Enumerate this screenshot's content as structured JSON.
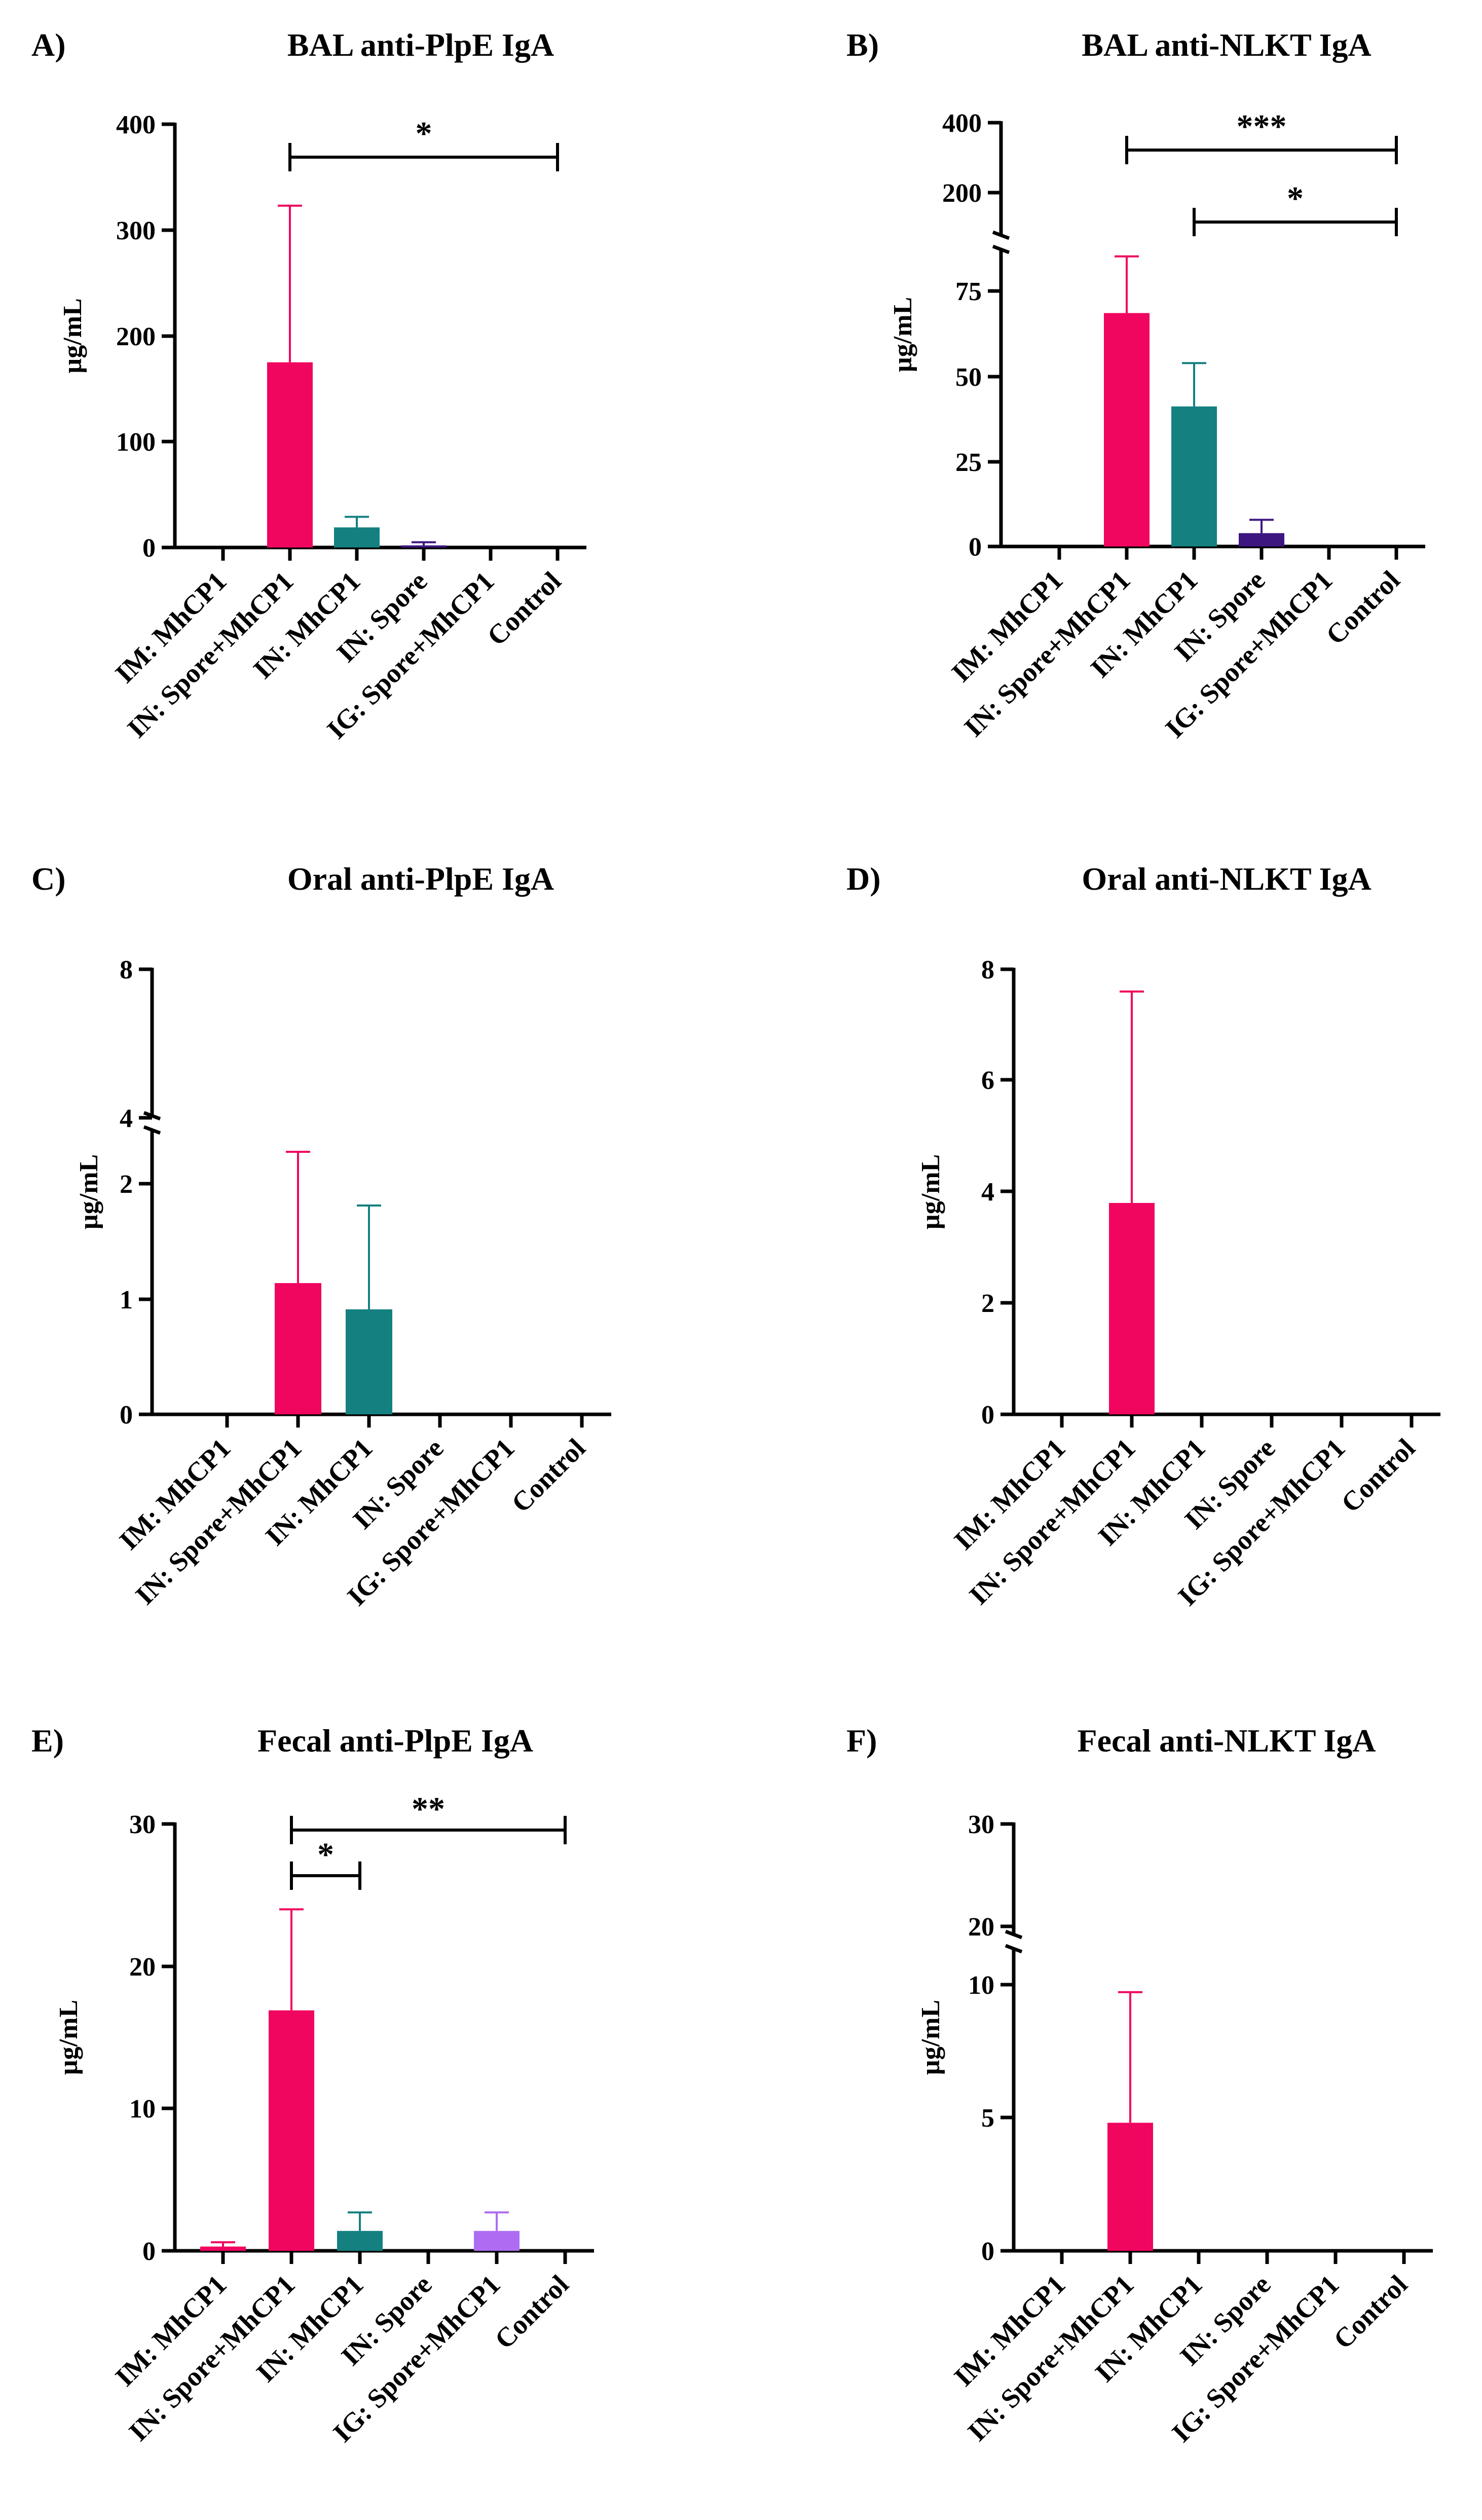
{
  "figure": {
    "colors": {
      "IM: MhCP1": "#f0055f",
      "IN: Spore+MhCP1": "#f0055f",
      "IN: MhCP1": "#148080",
      "IN: Spore": "#3d1680",
      "IG: Spore+MhCP1": "#ad6cf2",
      "Control": "#f0055f",
      "axis": "#000000"
    }
  },
  "chart_data": [
    {
      "panel": "A)",
      "type": "bar",
      "title": "BAL anti-PlpE IgA",
      "ylabel": "µg/mL",
      "categories": [
        "IM: MhCP1",
        "IN: Spore+MhCP1",
        "IN: MhCP1",
        "IN: Spore",
        "IG: Spore+MhCP1",
        "Control"
      ],
      "values": [
        0,
        175,
        19,
        2,
        0,
        0
      ],
      "errors": [
        0,
        148,
        10,
        3,
        0,
        0
      ],
      "ylim": [
        0,
        400
      ],
      "yticks": [
        0,
        100,
        200,
        300,
        400
      ],
      "axis_break": null,
      "significance": [
        {
          "from": 1,
          "to": 5,
          "label": "*"
        }
      ]
    },
    {
      "panel": "B)",
      "type": "bar",
      "title": "BAL anti-NLKT IgA",
      "ylabel": "µg/mL",
      "categories": [
        "IM: MhCP1",
        "IN: Spore+MhCP1",
        "IN: MhCP1",
        "IN: Spore",
        "IG: Spore+MhCP1",
        "Control"
      ],
      "values": [
        0,
        70,
        42,
        4,
        0,
        0
      ],
      "errors": [
        0,
        17,
        13,
        4,
        0,
        0
      ],
      "ylim": [
        0,
        400
      ],
      "yticks": [
        0,
        25,
        50,
        75,
        200,
        400
      ],
      "axis_break": {
        "lower_max": 90,
        "upper_min": 100
      },
      "significance": [
        {
          "from": 1,
          "to": 5,
          "label": "***"
        },
        {
          "from": 2,
          "to": 5,
          "label": "*"
        }
      ]
    },
    {
      "panel": "C)",
      "type": "bar",
      "title": "Oral anti-PlpE IgA",
      "ylabel": "µg/mL",
      "categories": [
        "IM: MhCP1",
        "IN: Spore+MhCP1",
        "IN: MhCP1",
        "IN: Spore",
        "IG: Spore+MhCP1",
        "Control"
      ],
      "values": [
        0,
        1.1,
        0.88,
        0,
        0,
        0
      ],
      "errors": [
        0,
        1.1,
        0.87,
        0,
        0,
        0
      ],
      "ylim": [
        0,
        8
      ],
      "yticks": [
        0,
        1,
        2,
        4,
        8
      ],
      "axis_break": {
        "lower_max": 2.4,
        "upper_min": 4
      },
      "significance": []
    },
    {
      "panel": "D)",
      "type": "bar",
      "title": "Oral anti-NLKT IgA",
      "ylabel": "µg/mL",
      "categories": [
        "IM: MhCP1",
        "IN: Spore+MhCP1",
        "IN: MhCP1",
        "IN: Spore",
        "IG: Spore+MhCP1",
        "Control"
      ],
      "values": [
        0,
        3.8,
        0,
        0,
        0,
        0
      ],
      "errors": [
        0,
        3.8,
        0,
        0,
        0,
        0
      ],
      "ylim": [
        0,
        8
      ],
      "yticks": [
        0,
        2,
        4,
        6,
        8
      ],
      "axis_break": null,
      "significance": []
    },
    {
      "panel": "E)",
      "type": "bar",
      "title": "Fecal anti-PlpE IgA",
      "ylabel": "µg/mL",
      "categories": [
        "IM: MhCP1",
        "IN: Spore+MhCP1",
        "IN: MhCP1",
        "IN: Spore",
        "IG: Spore+MhCP1",
        "Control"
      ],
      "values": [
        0.3,
        16.9,
        1.4,
        0,
        1.4,
        0
      ],
      "errors": [
        0.3,
        7.1,
        1.3,
        0,
        1.3,
        0
      ],
      "ylim": [
        0,
        30
      ],
      "yticks": [
        0,
        10,
        20,
        30
      ],
      "axis_break": null,
      "significance": [
        {
          "from": 1,
          "to": 2,
          "label": "*"
        },
        {
          "from": 1,
          "to": 5,
          "label": "**"
        }
      ]
    },
    {
      "panel": "F)",
      "type": "bar",
      "title": "Fecal anti-NLKT IgA",
      "ylabel": "µg/mL",
      "categories": [
        "IM: MhCP1",
        "IN: Spore+MhCP1",
        "IN: MhCP1",
        "IN: Spore",
        "IG: Spore+MhCP1",
        "Control"
      ],
      "values": [
        0,
        5.0,
        0,
        0,
        0,
        0
      ],
      "errors": [
        0,
        5.1,
        0,
        0,
        0,
        0
      ],
      "ylim": [
        0,
        30
      ],
      "yticks": [
        0,
        5,
        10,
        20,
        30
      ],
      "axis_break": {
        "lower_max": 11.5,
        "upper_min": 20
      },
      "significance": []
    }
  ]
}
